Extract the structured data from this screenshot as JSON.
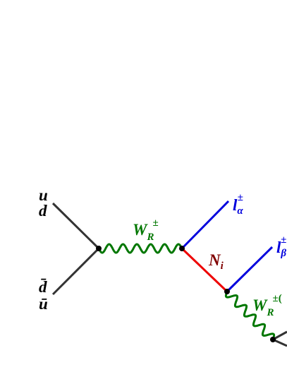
{
  "labels": {
    "quark_top": [
      "u",
      "d"
    ],
    "antiquark_bottom": [
      "d̄",
      "ū"
    ],
    "w_boson": {
      "base": "W",
      "sub": "R",
      "sup": "±"
    },
    "lepton_alpha": {
      "base": "l",
      "sub": "α",
      "sup": "±"
    },
    "neutrino": {
      "base": "N",
      "sub": "i"
    },
    "lepton_beta": {
      "base": "l",
      "sub": "β",
      "sup": "±"
    },
    "w_boson_2": {
      "base": "W",
      "sub": "R",
      "sup": "±("
    }
  }
}
